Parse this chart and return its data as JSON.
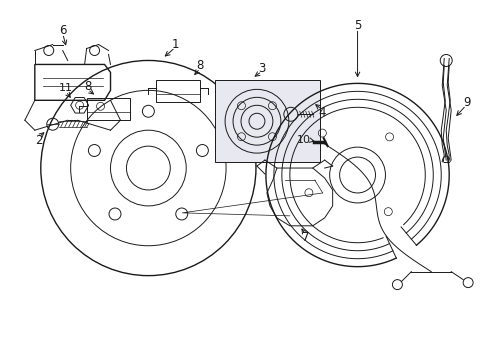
{
  "bg_color": "#ffffff",
  "line_color": "#1a1a1a",
  "box_fill": "#e8e8f0",
  "fig_w": 4.89,
  "fig_h": 3.6,
  "dpi": 100
}
